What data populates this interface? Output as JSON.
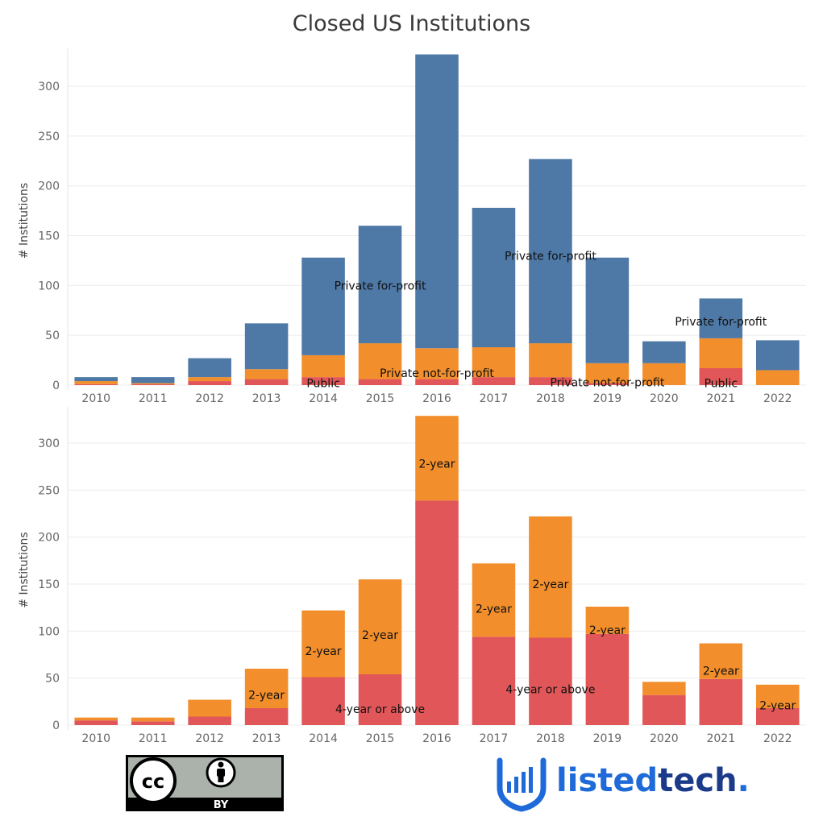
{
  "title": "Closed US Institutions",
  "colors": {
    "public": "#e15759",
    "pnfp": "#f28e2b",
    "pfp": "#4e79a7",
    "four_year": "#e15759",
    "two_year": "#f28e2b"
  },
  "chart_data": [
    {
      "type": "bar",
      "stacked": true,
      "ylabel": "# Institutions",
      "ylim": [
        0,
        330
      ],
      "yticks": [
        0,
        50,
        100,
        150,
        200,
        250,
        300
      ],
      "grid": true,
      "categories": [
        "2010",
        "2011",
        "2012",
        "2013",
        "2014",
        "2015",
        "2016",
        "2017",
        "2018",
        "2019",
        "2020",
        "2021",
        "2022"
      ],
      "series": [
        {
          "name": "Public",
          "color": "#e15759",
          "values": [
            1,
            1,
            4,
            6,
            8,
            6,
            6,
            8,
            8,
            2,
            0,
            17,
            0
          ]
        },
        {
          "name": "Private not-for-profit",
          "color": "#f28e2b",
          "values": [
            3,
            1,
            4,
            10,
            22,
            36,
            31,
            30,
            34,
            20,
            22,
            30,
            15
          ]
        },
        {
          "name": "Private for-profit",
          "color": "#4e79a7",
          "values": [
            4,
            6,
            19,
            46,
            98,
            118,
            295,
            140,
            185,
            106,
            22,
            40,
            30
          ]
        }
      ],
      "labels": [
        {
          "text": "Private for-profit",
          "category": "2015",
          "y": 100
        },
        {
          "text": "Private for-profit",
          "category": "2018",
          "y": 130
        },
        {
          "text": "Private for-profit",
          "category": "2021",
          "y": 64
        },
        {
          "text": "Private not-for-profit",
          "category": "2016",
          "y": 12
        },
        {
          "text": "Private not-for-profit",
          "category": "2019",
          "y": 3
        },
        {
          "text": "Public",
          "category": "2014",
          "y": 2
        },
        {
          "text": "Public",
          "category": "2021",
          "y": 2
        }
      ]
    },
    {
      "type": "bar",
      "stacked": true,
      "ylabel": "# Institutions",
      "ylim": [
        0,
        330
      ],
      "yticks": [
        0,
        50,
        100,
        150,
        200,
        250,
        300
      ],
      "grid": true,
      "categories": [
        "2010",
        "2011",
        "2012",
        "2013",
        "2014",
        "2015",
        "2016",
        "2017",
        "2018",
        "2019",
        "2020",
        "2021",
        "2022"
      ],
      "series": [
        {
          "name": "4-year or above",
          "color": "#e15759",
          "values": [
            5,
            4,
            9,
            18,
            51,
            54,
            239,
            94,
            93,
            97,
            32,
            49,
            18
          ]
        },
        {
          "name": "2-year",
          "color": "#f28e2b",
          "values": [
            3,
            4,
            18,
            42,
            71,
            101,
            90,
            78,
            129,
            29,
            14,
            38,
            25
          ]
        }
      ],
      "labels": [
        {
          "text": "2-year",
          "category": "2013",
          "y": 32
        },
        {
          "text": "2-year",
          "category": "2014",
          "y": 79
        },
        {
          "text": "2-year",
          "category": "2015",
          "y": 96
        },
        {
          "text": "2-year",
          "category": "2016",
          "y": 278
        },
        {
          "text": "2-year",
          "category": "2017",
          "y": 124
        },
        {
          "text": "2-year",
          "category": "2018",
          "y": 150
        },
        {
          "text": "2-year",
          "category": "2019",
          "y": 101
        },
        {
          "text": "2-year",
          "category": "2021",
          "y": 58
        },
        {
          "text": "2-year",
          "category": "2022",
          "y": 21
        },
        {
          "text": "4-year or above",
          "category": "2015",
          "y": 17
        },
        {
          "text": "4-year or above",
          "category": "2018",
          "y": 38
        }
      ]
    }
  ],
  "license": {
    "name": "cc-by",
    "label": "BY",
    "icon_text": "cc"
  },
  "brand": {
    "part1": "listed",
    "part2": "tech",
    "dot": "."
  }
}
